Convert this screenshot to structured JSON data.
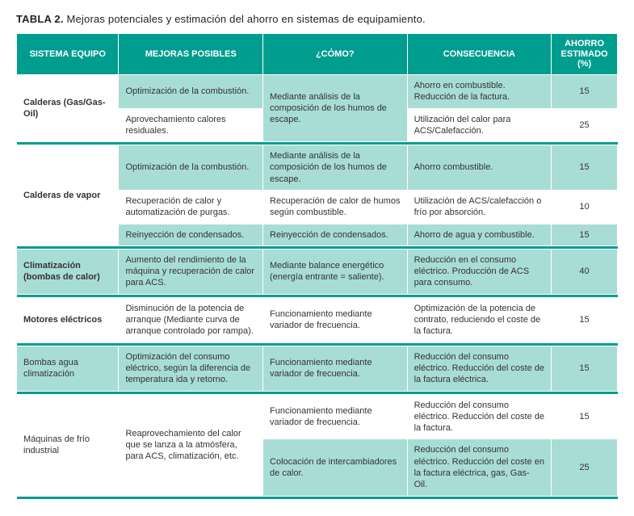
{
  "caption_label": "TABLA 2.",
  "caption_text": "Mejoras potenciales y estimación del ahorro en sistemas de equipamiento.",
  "headers": {
    "system": "SISTEMA EQUIPO",
    "improvements": "MEJORAS POSIBLES",
    "how": "¿CÓMO?",
    "consequence": "CONSECUENCIA",
    "savings": "AHORRO ESTIMADO (%)"
  },
  "groups": [
    {
      "system": "Calderas (Gas/Gas- Oil)",
      "system_bold": true,
      "system_band": "white",
      "rows": [
        {
          "band": "teal",
          "mejora": "Optimización de la combustión.",
          "como": "Mediante análisis de la composición de los humos de escape.",
          "como_rowspan": 2,
          "consecuencia": "Ahorro en combustible. Reducción de la factura.",
          "ahorro": "15"
        },
        {
          "band": "white",
          "mejora": "Aprovechamiento calores residuales.",
          "consecuencia": "Utilización del calor para ACS/Calefacción.",
          "ahorro": "25"
        }
      ]
    },
    {
      "system": "Calderas de vapor",
      "system_bold": true,
      "system_band": "white",
      "rows": [
        {
          "band": "teal",
          "mejora": "Optimización de la combustión.",
          "como": "Mediante análisis de la composición de los humos de escape.",
          "consecuencia": "Ahorro combustible.",
          "ahorro": "15"
        },
        {
          "band": "white",
          "mejora": "Recuperación de calor y automatización de purgas.",
          "como": "Recuperación de calor de humos según combustible.",
          "consecuencia": "Utilización de ACS/calefacción o frío por absorción.",
          "ahorro": "10"
        },
        {
          "band": "teal",
          "mejora": "Reinyección de condensados.",
          "como": "Reinyección de condensados.",
          "consecuencia": "Ahorro de agua y combustible.",
          "ahorro": "15"
        }
      ]
    },
    {
      "system": "Climatización (bombas de calor)",
      "system_bold": true,
      "system_band": "teal",
      "rows": [
        {
          "band": "teal",
          "mejora": "Aumento del rendimiento de la máquina y recuperación de calor para ACS.",
          "como": "Mediante balance energético (energía entrante = saliente).",
          "consecuencia": "Reducción en el consumo eléctrico. Producción de ACS para consumo.",
          "ahorro": "40"
        }
      ]
    },
    {
      "system": "Motores eléctricos",
      "system_bold": true,
      "system_band": "white",
      "rows": [
        {
          "band": "white",
          "mejora": "Disminución de la potencia de arranque (Mediante curva de arranque controlado por rampa).",
          "como": "Funcionamiento mediante variador de frecuencia.",
          "consecuencia": "Optimización de la potencia de contrato, reduciendo el coste de la factura.",
          "ahorro": "15"
        }
      ]
    },
    {
      "system": "Bombas agua climatización",
      "system_bold": false,
      "system_band": "teal",
      "rows": [
        {
          "band": "teal",
          "mejora": "Optimización del consumo eléctrico, según la diferencia de temperatura ida y retorno.",
          "como": "Funcionamiento mediante variador de frecuencia.",
          "consecuencia": "Reducción del consumo eléctrico. Reducción del coste de la factura eléctrica.",
          "ahorro": "15"
        }
      ]
    },
    {
      "system": "Máquinas de frío industrial",
      "system_bold": false,
      "system_band": "white",
      "rows": [
        {
          "band": "white",
          "mejora": "Reaprovechamiento del calor que se lanza a la atmósfera, para ACS, climatización, etc.",
          "mejora_rowspan": 2,
          "como": "Funcionamiento mediante variador de frecuencia.",
          "consecuencia": "Reducción del consumo eléctrico. Reducción del coste de la factura.",
          "ahorro": "15"
        },
        {
          "band": "teal",
          "como": "Colocación de intercambiadores de calor.",
          "consecuencia": "Reducción del consumo eléctrico. Reducción del coste en la factura eléctrica, gas, Gas- Oil.",
          "ahorro": "25"
        }
      ]
    }
  ],
  "colors": {
    "header_bg": "#009d8f",
    "header_text": "#ffffff",
    "band_teal": "#a8ddd6",
    "band_white": "#ffffff",
    "text": "#333333"
  }
}
